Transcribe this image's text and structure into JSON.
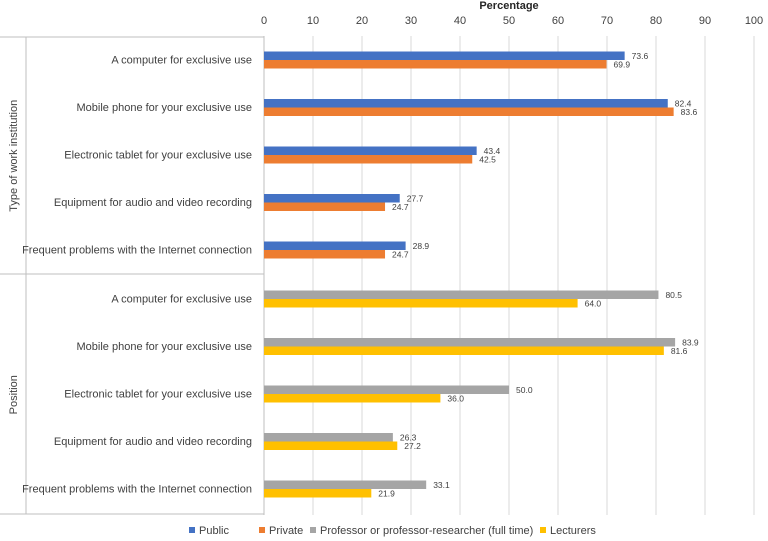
{
  "chart_data": {
    "type": "bar",
    "orientation": "horizontal",
    "xlabel": "Percentage",
    "xlim": [
      0,
      100
    ],
    "xticks": [
      0,
      10,
      20,
      30,
      40,
      50,
      60,
      70,
      80,
      90,
      100
    ],
    "grid": true,
    "legend_position": "bottom",
    "categories": [
      "A computer for exclusive use",
      "Mobile phone for your exclusive use",
      "Electronic tablet for your exclusive use",
      "Equipment for audio and video recording",
      "Frequent problems with the Internet connection"
    ],
    "groups": [
      {
        "title": "Type of work institution",
        "series": [
          {
            "name": "Public",
            "color": "#4472C4",
            "values": [
              73.6,
              82.4,
              43.4,
              27.7,
              28.9
            ],
            "labels": [
              "73.6",
              "82.4",
              "43.4",
              "27.7",
              "28.9"
            ]
          },
          {
            "name": "Private",
            "color": "#ED7D31",
            "values": [
              69.9,
              83.6,
              42.5,
              24.7,
              24.7
            ],
            "labels": [
              "69.9",
              "83.6",
              "42.5",
              "24.7",
              "24.7"
            ]
          }
        ]
      },
      {
        "title": "Position",
        "series": [
          {
            "name": "Professor or professor-researcher (full time)",
            "color": "#A5A5A5",
            "values": [
              80.5,
              83.9,
              50.0,
              26.3,
              33.1
            ],
            "labels": [
              "80.5",
              "83.9",
              "50.0",
              "26.3",
              "33.1"
            ]
          },
          {
            "name": "Lecturers",
            "color": "#FFC000",
            "values": [
              64.0,
              81.6,
              36.0,
              27.2,
              21.9
            ],
            "labels": [
              "64.0",
              "81.6",
              "36.0",
              "27.2",
              "21.9"
            ]
          }
        ]
      }
    ],
    "legend": [
      {
        "name": "Public",
        "color": "#4472C4"
      },
      {
        "name": "Private",
        "color": "#ED7D31"
      },
      {
        "name": "Professor or professor-researcher (full time)",
        "color": "#A5A5A5"
      },
      {
        "name": "Lecturers",
        "color": "#FFC000"
      }
    ]
  }
}
